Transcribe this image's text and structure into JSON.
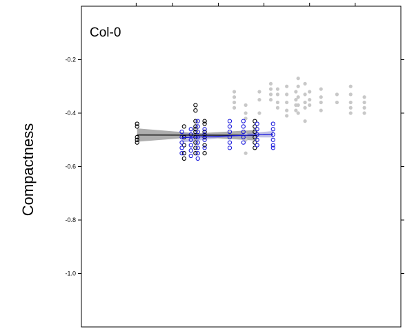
{
  "chart_data": {
    "type": "scatter",
    "title": "Col-0",
    "xlabel": "",
    "ylabel": "Compactness",
    "xlim": [
      0,
      7
    ],
    "ylim": [
      -1.2,
      0.0
    ],
    "y_ticks": [
      -0.2,
      -0.4,
      -0.6,
      -0.8,
      -1.0
    ],
    "y_tick_labels": [
      "-0.2",
      "-0.4",
      "-0.6",
      "-0.8",
      "-1.0"
    ],
    "x_ticks": [
      1.2,
      2.0,
      3.0,
      4.0,
      5.0,
      6.0
    ],
    "x_tick_labels": [
      "",
      "",
      "",
      "",
      "",
      ""
    ],
    "grid": false,
    "colors": {
      "background_points": "#c8c8c8",
      "group_a": "#000000",
      "group_b": "#1a1adc",
      "band_a": "#a0a0a0",
      "band_b": "#8c8cd2"
    },
    "series": [
      {
        "style": "filled-grey",
        "points": [
          [
            3.35,
            -0.32
          ],
          [
            3.35,
            -0.34
          ],
          [
            3.35,
            -0.36
          ],
          [
            3.35,
            -0.38
          ],
          [
            3.9,
            -0.32
          ],
          [
            3.9,
            -0.35
          ],
          [
            3.9,
            -0.4
          ],
          [
            3.6,
            -0.37
          ],
          [
            3.6,
            -0.4
          ],
          [
            3.6,
            -0.42
          ],
          [
            3.6,
            -0.48
          ],
          [
            3.6,
            -0.5
          ],
          [
            3.6,
            -0.55
          ],
          [
            3.8,
            -0.46
          ],
          [
            3.8,
            -0.48
          ],
          [
            4.15,
            -0.29
          ],
          [
            4.15,
            -0.31
          ],
          [
            4.15,
            -0.33
          ],
          [
            4.15,
            -0.35
          ],
          [
            4.3,
            -0.31
          ],
          [
            4.3,
            -0.33
          ],
          [
            4.3,
            -0.36
          ],
          [
            4.3,
            -0.38
          ],
          [
            4.5,
            -0.3
          ],
          [
            4.5,
            -0.33
          ],
          [
            4.5,
            -0.36
          ],
          [
            4.5,
            -0.39
          ],
          [
            4.5,
            -0.41
          ],
          [
            4.7,
            -0.32
          ],
          [
            4.7,
            -0.35
          ],
          [
            4.7,
            -0.37
          ],
          [
            4.7,
            -0.39
          ],
          [
            4.75,
            -0.27
          ],
          [
            4.75,
            -0.3
          ],
          [
            4.75,
            -0.34
          ],
          [
            4.75,
            -0.37
          ],
          [
            4.75,
            -0.4
          ],
          [
            4.9,
            -0.29
          ],
          [
            4.9,
            -0.33
          ],
          [
            4.9,
            -0.36
          ],
          [
            4.9,
            -0.38
          ],
          [
            4.9,
            -0.43
          ],
          [
            5.0,
            -0.32
          ],
          [
            5.0,
            -0.35
          ],
          [
            5.0,
            -0.37
          ],
          [
            5.25,
            -0.31
          ],
          [
            5.25,
            -0.34
          ],
          [
            5.25,
            -0.36
          ],
          [
            5.25,
            -0.39
          ],
          [
            5.6,
            -0.33
          ],
          [
            5.6,
            -0.36
          ],
          [
            5.9,
            -0.3
          ],
          [
            5.9,
            -0.33
          ],
          [
            5.9,
            -0.36
          ],
          [
            5.9,
            -0.38
          ],
          [
            5.9,
            -0.4
          ],
          [
            6.2,
            -0.34
          ],
          [
            6.2,
            -0.36
          ],
          [
            6.2,
            -0.38
          ],
          [
            6.2,
            -0.4
          ]
        ]
      },
      {
        "style": "open-black",
        "points": [
          [
            1.22,
            -0.44
          ],
          [
            1.22,
            -0.45
          ],
          [
            1.22,
            -0.49
          ],
          [
            1.22,
            -0.5
          ],
          [
            1.22,
            -0.51
          ],
          [
            2.25,
            -0.45
          ],
          [
            2.25,
            -0.49
          ],
          [
            2.25,
            -0.52
          ],
          [
            2.25,
            -0.55
          ],
          [
            2.25,
            -0.57
          ],
          [
            2.5,
            -0.37
          ],
          [
            2.5,
            -0.39
          ],
          [
            2.5,
            -0.43
          ],
          [
            2.5,
            -0.45
          ],
          [
            2.5,
            -0.46
          ],
          [
            2.5,
            -0.47
          ],
          [
            2.5,
            -0.49
          ],
          [
            2.5,
            -0.51
          ],
          [
            2.5,
            -0.53
          ],
          [
            2.5,
            -0.55
          ],
          [
            2.7,
            -0.43
          ],
          [
            2.7,
            -0.44
          ],
          [
            2.7,
            -0.47
          ],
          [
            2.7,
            -0.49
          ],
          [
            2.7,
            -0.52
          ],
          [
            2.7,
            -0.55
          ],
          [
            3.8,
            -0.43
          ],
          [
            3.8,
            -0.45
          ],
          [
            3.8,
            -0.47
          ],
          [
            3.8,
            -0.49
          ],
          [
            3.8,
            -0.51
          ],
          [
            3.8,
            -0.53
          ]
        ]
      },
      {
        "style": "open-blue",
        "points": [
          [
            2.2,
            -0.47
          ],
          [
            2.2,
            -0.49
          ],
          [
            2.2,
            -0.51
          ],
          [
            2.2,
            -0.53
          ],
          [
            2.2,
            -0.55
          ],
          [
            2.4,
            -0.46
          ],
          [
            2.4,
            -0.48
          ],
          [
            2.4,
            -0.5
          ],
          [
            2.4,
            -0.52
          ],
          [
            2.4,
            -0.54
          ],
          [
            2.4,
            -0.56
          ],
          [
            2.55,
            -0.43
          ],
          [
            2.55,
            -0.45
          ],
          [
            2.55,
            -0.47
          ],
          [
            2.55,
            -0.49
          ],
          [
            2.55,
            -0.51
          ],
          [
            2.55,
            -0.53
          ],
          [
            2.55,
            -0.55
          ],
          [
            2.55,
            -0.57
          ],
          [
            2.7,
            -0.46
          ],
          [
            2.7,
            -0.48
          ],
          [
            2.7,
            -0.5
          ],
          [
            2.7,
            -0.53
          ],
          [
            3.25,
            -0.43
          ],
          [
            3.25,
            -0.45
          ],
          [
            3.25,
            -0.47
          ],
          [
            3.25,
            -0.49
          ],
          [
            3.25,
            -0.51
          ],
          [
            3.25,
            -0.53
          ],
          [
            3.55,
            -0.43
          ],
          [
            3.55,
            -0.45
          ],
          [
            3.55,
            -0.47
          ],
          [
            3.55,
            -0.49
          ],
          [
            3.55,
            -0.51
          ],
          [
            3.85,
            -0.44
          ],
          [
            3.85,
            -0.46
          ],
          [
            3.85,
            -0.48
          ],
          [
            3.85,
            -0.5
          ],
          [
            3.85,
            -0.52
          ],
          [
            4.2,
            -0.44
          ],
          [
            4.2,
            -0.46
          ],
          [
            4.2,
            -0.48
          ],
          [
            4.2,
            -0.5
          ],
          [
            4.2,
            -0.52
          ],
          [
            4.2,
            -0.53
          ]
        ]
      }
    ],
    "fits": [
      {
        "color": "black",
        "x": [
          1.22,
          3.85
        ],
        "y": [
          -0.482,
          -0.483
        ],
        "ci_start": 0.025,
        "ci_end": 0.02
      },
      {
        "color": "blue",
        "x": [
          2.2,
          4.2
        ],
        "y": [
          -0.492,
          -0.479
        ],
        "ci_start": 0.018,
        "ci_end": 0.012
      }
    ]
  }
}
